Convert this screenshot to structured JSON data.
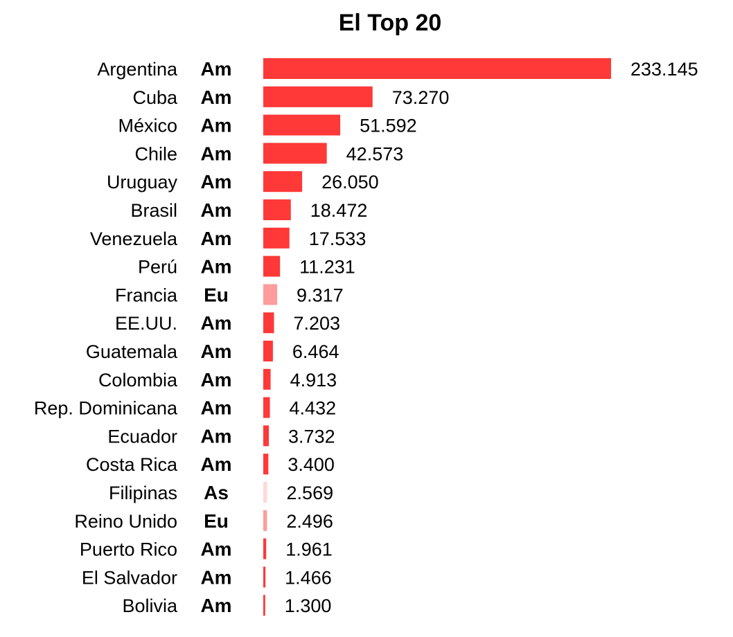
{
  "chart_data": {
    "type": "bar",
    "orientation": "horizontal",
    "title": "El Top 20",
    "categories": [
      "Argentina",
      "Cuba",
      "México",
      "Chile",
      "Uruguay",
      "Brasil",
      "Venezuela",
      "Perú",
      "Francia",
      "EE.UU.",
      "Guatemala",
      "Colombia",
      "Rep. Dominicana",
      "Ecuador",
      "Costa Rica",
      "Filipinas",
      "Reino Unido",
      "Puerto Rico",
      "El Salvador",
      "Bolivia"
    ],
    "regions": [
      "Am",
      "Am",
      "Am",
      "Am",
      "Am",
      "Am",
      "Am",
      "Am",
      "Eu",
      "Am",
      "Am",
      "Am",
      "Am",
      "Am",
      "Am",
      "As",
      "Eu",
      "Am",
      "Am",
      "Am"
    ],
    "values": [
      233145,
      73270,
      51592,
      42573,
      26050,
      18472,
      17533,
      11231,
      9317,
      7203,
      6464,
      4913,
      4432,
      3732,
      3400,
      2569,
      2496,
      1961,
      1466,
      1300
    ],
    "value_labels": [
      "233.145",
      "73.270",
      "51.592",
      "42.573",
      "26.050",
      "18.472",
      "17.533",
      "11.231",
      "9.317",
      "7.203",
      "6.464",
      "4.913",
      "4.432",
      "3.732",
      "3.400",
      "2.569",
      "2.496",
      "1.961",
      "1.466",
      "1.300"
    ],
    "region_colors": {
      "Am": "#ff3838",
      "Eu": "#ff9c9c",
      "As": "#ffd8d8"
    },
    "xlim": [
      0,
      233145
    ],
    "grid": false,
    "legend": "none"
  }
}
